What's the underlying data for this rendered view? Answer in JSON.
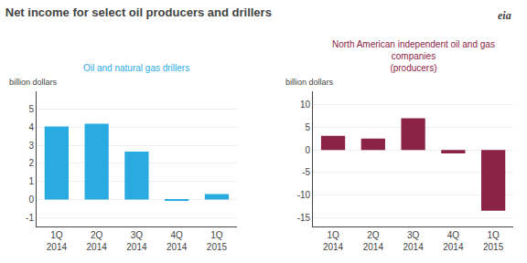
{
  "title": "Net income for select oil producers and drillers",
  "annotations": [
    "eia"
  ],
  "chart_data": [
    {
      "type": "bar",
      "title": "Oil and natural gas drillers",
      "ylabel": "billion dollars",
      "categories": [
        "1Q\n2014",
        "2Q\n2014",
        "3Q\n2014",
        "4Q\n2014",
        "1Q\n2015"
      ],
      "values": [
        4.05,
        4.2,
        2.65,
        -0.05,
        0.3
      ],
      "color": "#29ABE2",
      "ylim": [
        -1.5,
        6
      ],
      "yticks": [
        -1,
        0,
        1,
        2,
        3,
        4,
        5
      ],
      "grid": true
    },
    {
      "type": "bar",
      "title": "North American independent oil and gas\ncompanies\n(producers)",
      "ylabel": "billion dollars",
      "categories": [
        "1Q\n2014",
        "2Q\n2014",
        "3Q\n2014",
        "4Q\n2014",
        "1Q\n2015"
      ],
      "values": [
        3.1,
        2.5,
        7.0,
        -0.8,
        -13.5
      ],
      "color": "#8B2346",
      "ylim": [
        -17,
        13
      ],
      "yticks": [
        -15,
        -10,
        -5,
        0,
        5,
        10
      ],
      "grid": true
    }
  ]
}
